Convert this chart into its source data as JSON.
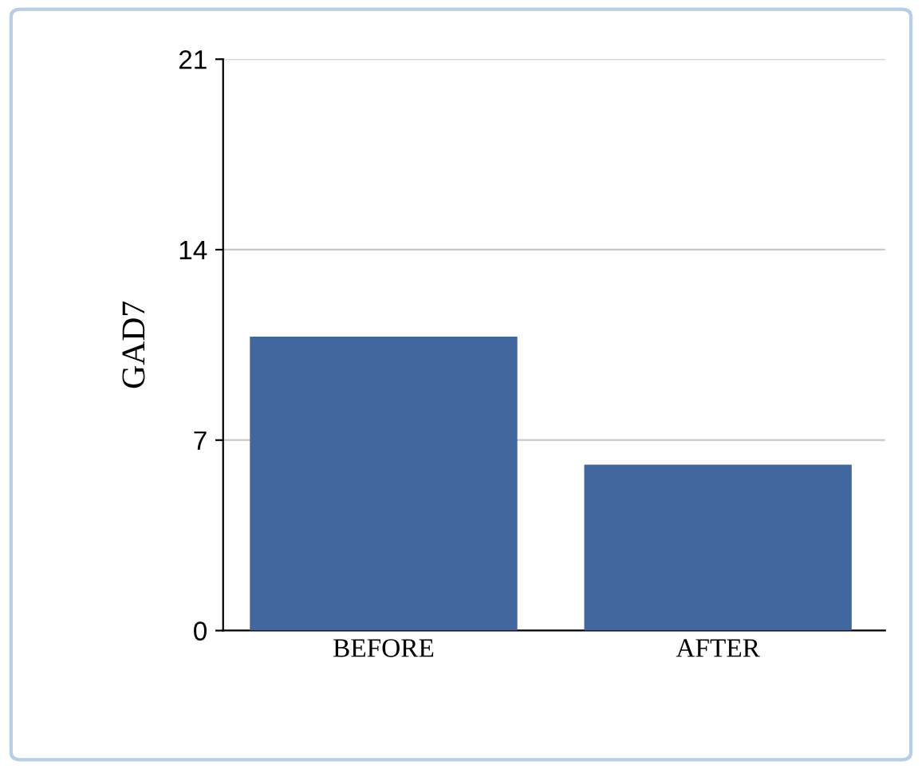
{
  "chart_data": {
    "type": "bar",
    "ylabel": "GAD7",
    "categories": [
      "BEFORE",
      "AFTER"
    ],
    "values": [
      10.8,
      6.1
    ],
    "color": "#42679e",
    "ylim": [
      0,
      21
    ],
    "yticks": [
      0,
      7,
      14,
      21
    ],
    "grid": "y"
  }
}
